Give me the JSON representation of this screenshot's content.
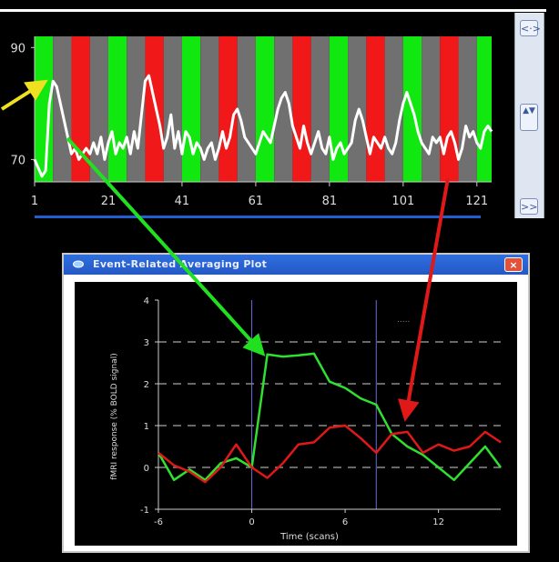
{
  "top_plot": {
    "y_ticks": [
      {
        "label": "90",
        "value": 90
      },
      {
        "label": "70",
        "value": 70
      }
    ],
    "ylim": [
      66,
      92
    ],
    "xlim": [
      1,
      125
    ],
    "x_ticks": [
      {
        "label": "1",
        "value": 1
      },
      {
        "label": "21",
        "value": 21
      },
      {
        "label": "41",
        "value": 41
      },
      {
        "label": "61",
        "value": 61
      },
      {
        "label": "81",
        "value": 81
      },
      {
        "label": "101",
        "value": 101
      },
      {
        "label": "121",
        "value": 121
      }
    ],
    "block_pattern": [
      "#10e810",
      "#707070",
      "#f01818",
      "#707070"
    ],
    "block_length_scans": 5,
    "bold_signal": [
      [
        1,
        70
      ],
      [
        3,
        67
      ],
      [
        4,
        68
      ],
      [
        5,
        80
      ],
      [
        6,
        84
      ],
      [
        7,
        83
      ],
      [
        8,
        80
      ],
      [
        9,
        77
      ],
      [
        10,
        74
      ],
      [
        11,
        71
      ],
      [
        12,
        72
      ],
      [
        13,
        70
      ],
      [
        14,
        71
      ],
      [
        15,
        72
      ],
      [
        16,
        71
      ],
      [
        17,
        73
      ],
      [
        18,
        71
      ],
      [
        19,
        74
      ],
      [
        20,
        70
      ],
      [
        21,
        73
      ],
      [
        22,
        75
      ],
      [
        23,
        71
      ],
      [
        24,
        73
      ],
      [
        25,
        72
      ],
      [
        26,
        74
      ],
      [
        27,
        71
      ],
      [
        28,
        75
      ],
      [
        29,
        72
      ],
      [
        30,
        78
      ],
      [
        31,
        84
      ],
      [
        32,
        85
      ],
      [
        33,
        82
      ],
      [
        34,
        79
      ],
      [
        35,
        76
      ],
      [
        36,
        72
      ],
      [
        37,
        74
      ],
      [
        38,
        78
      ],
      [
        39,
        72
      ],
      [
        40,
        75
      ],
      [
        41,
        71
      ],
      [
        42,
        75
      ],
      [
        43,
        74
      ],
      [
        44,
        71
      ],
      [
        45,
        73
      ],
      [
        46,
        72
      ],
      [
        47,
        70
      ],
      [
        48,
        72
      ],
      [
        49,
        73
      ],
      [
        50,
        70
      ],
      [
        51,
        72
      ],
      [
        52,
        75
      ],
      [
        53,
        72
      ],
      [
        54,
        74
      ],
      [
        55,
        78
      ],
      [
        56,
        79
      ],
      [
        57,
        77
      ],
      [
        58,
        74
      ],
      [
        59,
        73
      ],
      [
        60,
        72
      ],
      [
        61,
        71
      ],
      [
        62,
        73
      ],
      [
        63,
        75
      ],
      [
        64,
        74
      ],
      [
        65,
        73
      ],
      [
        66,
        76
      ],
      [
        67,
        79
      ],
      [
        68,
        81
      ],
      [
        69,
        82
      ],
      [
        70,
        80
      ],
      [
        71,
        76
      ],
      [
        72,
        74
      ],
      [
        73,
        72
      ],
      [
        74,
        76
      ],
      [
        75,
        73
      ],
      [
        76,
        71
      ],
      [
        77,
        73
      ],
      [
        78,
        75
      ],
      [
        79,
        72
      ],
      [
        80,
        71
      ],
      [
        81,
        74
      ],
      [
        82,
        70
      ],
      [
        83,
        72
      ],
      [
        84,
        73
      ],
      [
        85,
        71
      ],
      [
        86,
        72
      ],
      [
        87,
        73
      ],
      [
        88,
        77
      ],
      [
        89,
        79
      ],
      [
        90,
        77
      ],
      [
        91,
        74
      ],
      [
        92,
        71
      ],
      [
        93,
        74
      ],
      [
        94,
        73
      ],
      [
        95,
        72
      ],
      [
        96,
        74
      ],
      [
        97,
        72
      ],
      [
        98,
        71
      ],
      [
        99,
        73
      ],
      [
        100,
        77
      ],
      [
        101,
        80
      ],
      [
        102,
        82
      ],
      [
        103,
        80
      ],
      [
        104,
        78
      ],
      [
        105,
        75
      ],
      [
        106,
        73
      ],
      [
        107,
        72
      ],
      [
        108,
        71
      ],
      [
        109,
        74
      ],
      [
        110,
        73
      ],
      [
        111,
        74
      ],
      [
        112,
        71
      ],
      [
        113,
        74
      ],
      [
        114,
        75
      ],
      [
        115,
        73
      ],
      [
        116,
        70
      ],
      [
        117,
        72
      ],
      [
        118,
        76
      ],
      [
        119,
        74
      ],
      [
        120,
        75
      ],
      [
        121,
        73
      ],
      [
        122,
        72
      ],
      [
        123,
        75
      ],
      [
        124,
        76
      ],
      [
        125,
        75
      ]
    ],
    "selected_scan_range": [
      1,
      125
    ]
  },
  "scrollbar": {
    "top_button": "<·>",
    "middle_button": "▲▼",
    "bottom_button": ">>"
  },
  "dialog": {
    "title": "Event-Related Averaging Plot",
    "close_label": "×",
    "chart_data": {
      "type": "line",
      "title": "",
      "xlabel": "Time (scans)",
      "ylabel": "fMRI response (% BOLD signal)",
      "xlim": [
        -6,
        16
      ],
      "ylim": [
        -1,
        4
      ],
      "x_ticks": [
        {
          "label": "-6",
          "value": -6
        },
        {
          "label": "0",
          "value": 0
        },
        {
          "label": "6",
          "value": 6
        },
        {
          "label": "12",
          "value": 12
        }
      ],
      "y_ticks": [
        {
          "label": "-1",
          "value": -1
        },
        {
          "label": "0",
          "value": 0
        },
        {
          "label": "1",
          "value": 1
        },
        {
          "label": "2",
          "value": 2
        },
        {
          "label": "3",
          "value": 3
        },
        {
          "label": "4",
          "value": 4
        }
      ],
      "dashed_grid_values": [
        0,
        1,
        2,
        3
      ],
      "event_lines_x": [
        0,
        8
      ],
      "series": [
        {
          "color": "#30e030",
          "points": [
            [
              -6,
              0.35
            ],
            [
              -5,
              -0.3
            ],
            [
              -4,
              -0.05
            ],
            [
              -3,
              -0.3
            ],
            [
              -2,
              0.1
            ],
            [
              -1,
              0.22
            ],
            [
              0,
              0.0
            ],
            [
              1,
              2.7
            ],
            [
              2,
              2.65
            ],
            [
              3,
              2.68
            ],
            [
              4,
              2.72
            ],
            [
              5,
              2.05
            ],
            [
              6,
              1.9
            ],
            [
              7,
              1.65
            ],
            [
              8,
              1.5
            ],
            [
              9,
              0.8
            ],
            [
              10,
              0.5
            ],
            [
              11,
              0.3
            ],
            [
              12,
              0.0
            ],
            [
              13,
              -0.3
            ],
            [
              14,
              0.1
            ],
            [
              15,
              0.5
            ],
            [
              16,
              0.0
            ]
          ]
        },
        {
          "color": "#e01818",
          "points": [
            [
              -6,
              0.35
            ],
            [
              -5,
              0.05
            ],
            [
              -4,
              -0.1
            ],
            [
              -3,
              -0.35
            ],
            [
              -2,
              0.0
            ],
            [
              -1,
              0.55
            ],
            [
              0,
              0.0
            ],
            [
              1,
              -0.25
            ],
            [
              2,
              0.1
            ],
            [
              3,
              0.55
            ],
            [
              4,
              0.6
            ],
            [
              5,
              0.95
            ],
            [
              6,
              1.0
            ],
            [
              7,
              0.7
            ],
            [
              8,
              0.35
            ],
            [
              9,
              0.8
            ],
            [
              10,
              0.85
            ],
            [
              11,
              0.35
            ],
            [
              12,
              0.55
            ],
            [
              13,
              0.4
            ],
            [
              14,
              0.5
            ],
            [
              15,
              0.85
            ],
            [
              16,
              0.6
            ]
          ]
        }
      ],
      "dotted_note": "....."
    }
  },
  "annotations": {
    "yellow": "#f0e020",
    "green": "#20e020",
    "red": "#e01818"
  }
}
